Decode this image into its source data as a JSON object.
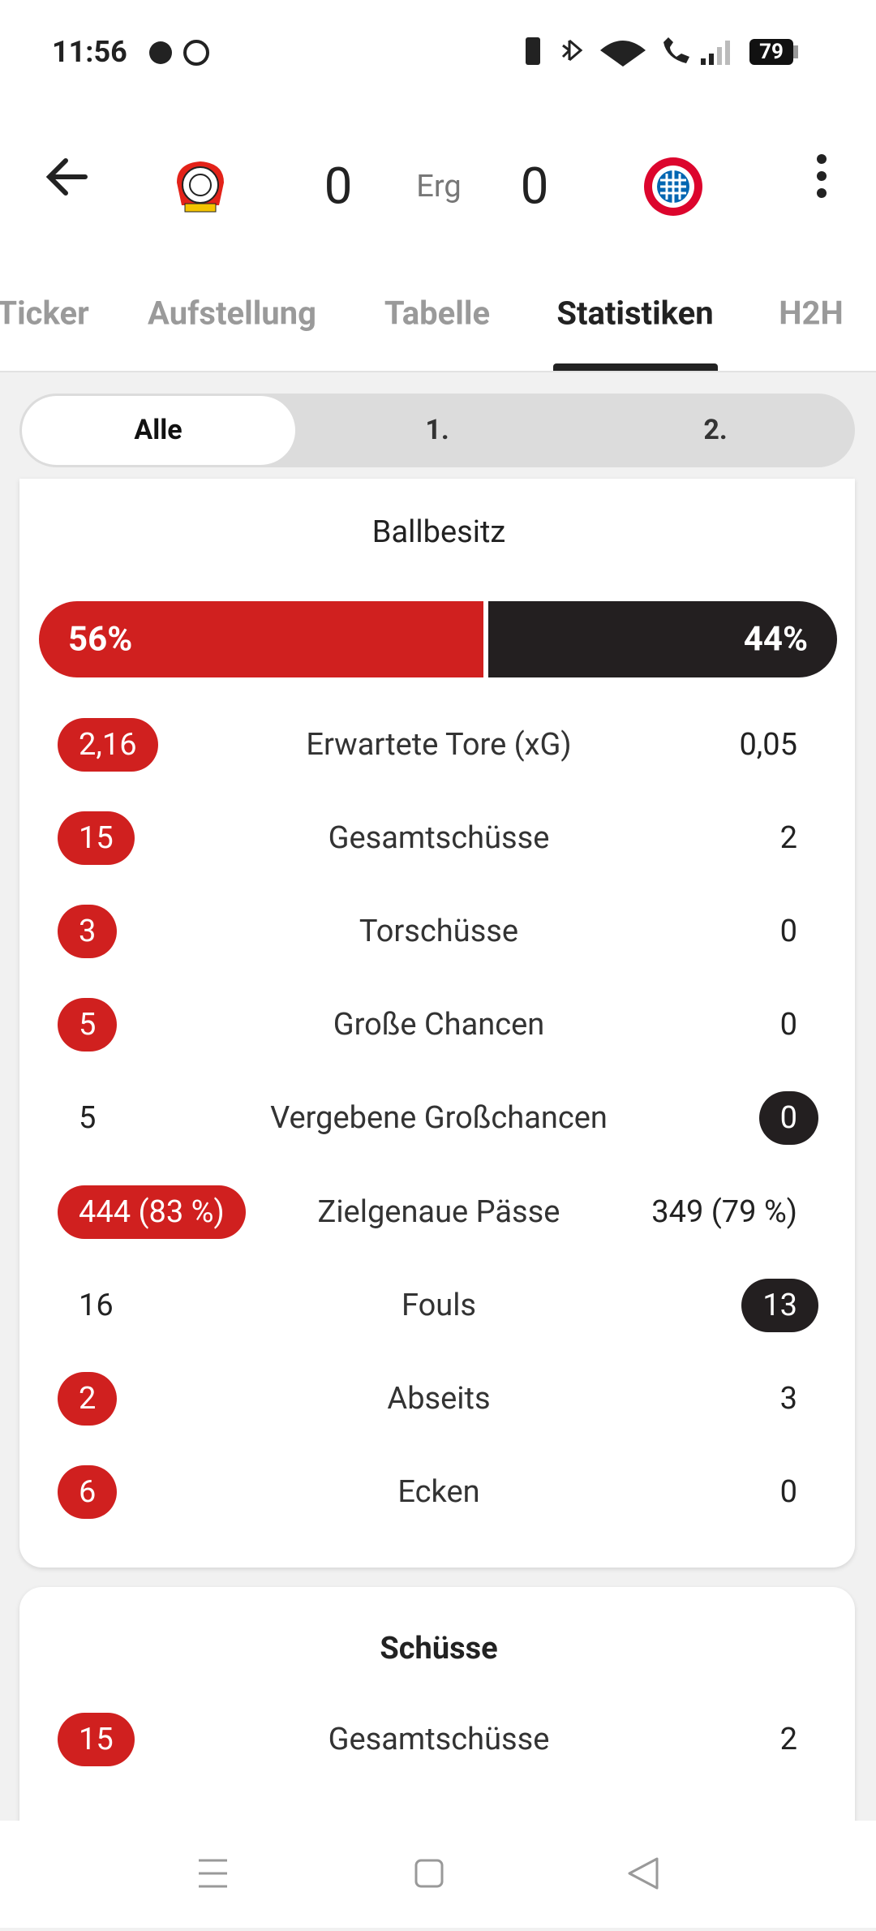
{
  "status_bar": {
    "time": "11:56",
    "battery": "79"
  },
  "header": {
    "home_score": "0",
    "status": "Erg",
    "away_score": "0"
  },
  "tabs": [
    "Ticker",
    "Aufstellung",
    "Tabelle",
    "Statistiken",
    "H2H"
  ],
  "active_tab": 3,
  "periods": [
    "Alle",
    "1.",
    "2."
  ],
  "active_period": 0,
  "overview": {
    "title": "Ballbesitz",
    "possession": {
      "home": {
        "value": 56,
        "label": "56%"
      },
      "away": {
        "value": 44,
        "label": "44%"
      }
    },
    "rows": [
      {
        "name": "Erwartete Tore (xG)",
        "home": "2,16",
        "away": "0,05",
        "highlight": "home"
      },
      {
        "name": "Gesamtschüsse",
        "home": "15",
        "away": "2",
        "highlight": "home"
      },
      {
        "name": "Torschüsse",
        "home": "3",
        "away": "0",
        "highlight": "home"
      },
      {
        "name": "Große Chancen",
        "home": "5",
        "away": "0",
        "highlight": "home"
      },
      {
        "name": "Vergebene Großchancen",
        "home": "5",
        "away": "0",
        "highlight": "away"
      },
      {
        "name": "Zielgenaue Pässe",
        "home": "444 (83 %)",
        "away": "349 (79 %)",
        "highlight": "home"
      },
      {
        "name": "Fouls",
        "home": "16",
        "away": "13",
        "highlight": "away"
      },
      {
        "name": "Abseits",
        "home": "2",
        "away": "3",
        "highlight": "home"
      },
      {
        "name": "Ecken",
        "home": "6",
        "away": "0",
        "highlight": "home"
      }
    ]
  },
  "shots": {
    "title": "Schüsse",
    "rows": [
      {
        "name": "Gesamtschüsse",
        "home": "15",
        "away": "2",
        "highlight": "home"
      }
    ]
  }
}
